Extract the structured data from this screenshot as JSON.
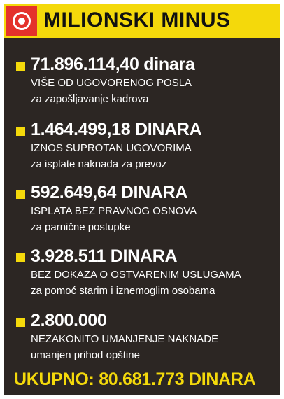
{
  "header": {
    "title": "MILIONSKI MINUS",
    "logo_icon": "target-icon"
  },
  "colors": {
    "background": "#2c2623",
    "accent_yellow": "#f4d90b",
    "logo_red": "#e4322b",
    "text": "#ffffff"
  },
  "items": [
    {
      "amount": "71.896.114,40 dinara",
      "description": "VIŠE OD UGOVORENOG POSLA",
      "detail": "za zapošljavanje kadrova"
    },
    {
      "amount": "1.464.499,18 DINARA",
      "description": "IZNOS SUPROTAN UGOVORIMA",
      "detail": "za isplate naknada za prevoz"
    },
    {
      "amount": "592.649,64 DINARA",
      "description": "ISPLATA BEZ PRAVNOG OSNOVA",
      "detail": "za parnične postupke"
    },
    {
      "amount": "3.928.511 DINARA",
      "description": "BEZ DOKAZA O OSTVARENIM USLUGAMA",
      "detail": "za pomoć starim i iznemoglim osobama"
    },
    {
      "amount": "2.800.000",
      "description": "NEZAKONITO UMANJENJE NAKNADE",
      "detail": "umanjen prihod opštine"
    }
  ],
  "total": "UKUPNO: 80.681.773 DINARA"
}
